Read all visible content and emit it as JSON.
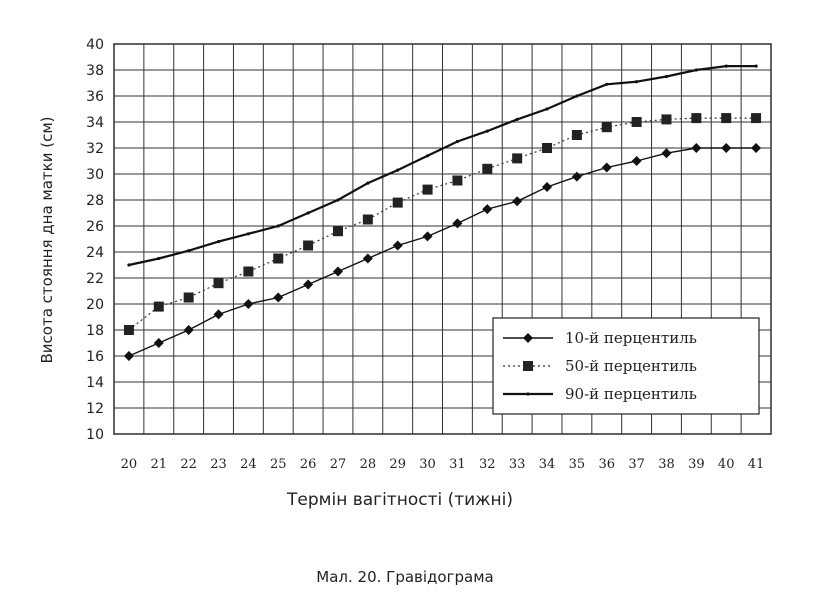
{
  "chart_data": {
    "type": "line",
    "xlabel": "Термін вагітності (тижні)",
    "ylabel": "Висота стояння дна матки (см)",
    "caption": "Мал. 20. Гравідограма",
    "x": [
      20,
      21,
      22,
      23,
      24,
      25,
      26,
      27,
      28,
      29,
      30,
      31,
      32,
      33,
      34,
      35,
      36,
      37,
      38,
      39,
      40,
      41
    ],
    "xlim": [
      19.5,
      41.5
    ],
    "ylim": [
      10,
      40
    ],
    "yticks": [
      10,
      12,
      14,
      16,
      18,
      20,
      22,
      24,
      26,
      28,
      30,
      32,
      34,
      36,
      38,
      40
    ],
    "grid": true,
    "legend_position": "bottom-right",
    "series": [
      {
        "name": "10-й перцентиль",
        "marker": "diamond",
        "line": "solid",
        "values": [
          16,
          17,
          18,
          19.2,
          20,
          20.5,
          21.5,
          22.5,
          23.5,
          24.5,
          25.2,
          26.2,
          27.3,
          27.9,
          29,
          29.8,
          30.5,
          31,
          31.6,
          32,
          32,
          32
        ]
      },
      {
        "name": "50-й перцентиль",
        "marker": "square",
        "line": "dotted",
        "values": [
          18,
          19.8,
          20.5,
          21.6,
          22.5,
          23.5,
          24.5,
          25.6,
          26.5,
          27.8,
          28.8,
          29.5,
          30.4,
          31.2,
          32,
          33,
          33.6,
          34,
          34.2,
          34.3,
          34.3,
          34.3
        ]
      },
      {
        "name": "90-й перцентиль",
        "marker": "none",
        "line": "solid-thick",
        "values": [
          23,
          23.5,
          24.1,
          24.8,
          25.4,
          26,
          27,
          28,
          29.3,
          30.3,
          31.4,
          32.5,
          33.3,
          34.2,
          35,
          36,
          36.9,
          37.1,
          37.5,
          38,
          38.3,
          38.3
        ]
      }
    ]
  }
}
